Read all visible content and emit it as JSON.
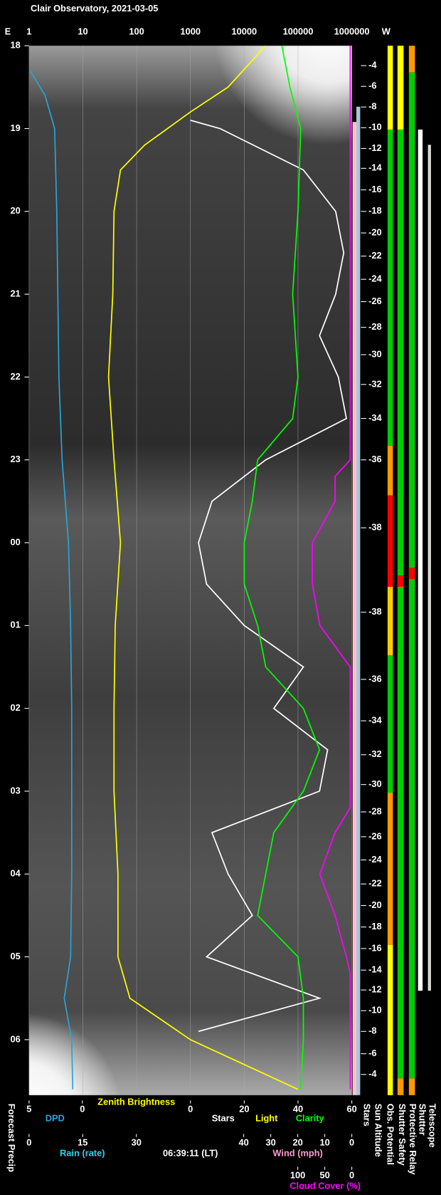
{
  "chart_data": {
    "type": "line",
    "title": "Clair Observatory, 2021-03-05",
    "time_label": "06:39:11 (LT)",
    "light_label": "Light",
    "ylim": [
      18,
      30.67
    ],
    "yticks": [
      18,
      19,
      20,
      21,
      22,
      23,
      {
        "value": 24,
        "label": "00"
      },
      {
        "value": 25,
        "label": "01"
      },
      {
        "value": 26,
        "label": "02"
      },
      {
        "value": 27,
        "label": "03"
      },
      {
        "value": 28,
        "label": "04"
      },
      {
        "value": 29,
        "label": "05"
      },
      {
        "value": 30,
        "label": "06"
      }
    ],
    "axes": {
      "brightness": {
        "log": true,
        "left": "E",
        "right": "W",
        "xlim": [
          1,
          1000000
        ],
        "xticks": [
          1,
          10,
          100,
          1000,
          10000,
          100000,
          1000000
        ]
      },
      "dpd": {
        "xlim": [
          5,
          0
        ],
        "xticks": [
          5,
          0
        ]
      },
      "rain": {
        "label": "Rain (rate)",
        "xlim": [
          0,
          30
        ],
        "xticks": [
          0,
          15,
          30
        ]
      },
      "stars": {
        "xlim": [
          0,
          60
        ],
        "xticks": [
          0,
          20,
          40,
          60
        ]
      },
      "wind": {
        "label": "Wind (mph)",
        "xlim": [
          40,
          0
        ],
        "xticks": [
          40,
          30,
          20,
          10,
          0
        ]
      },
      "cloud": {
        "xlim": [
          100,
          0
        ],
        "xticks": [
          100,
          50,
          0
        ]
      }
    },
    "series": [
      {
        "name": "DPD",
        "axis": "dpd",
        "color": "#29a3d9",
        "x": [
          18.3,
          18.6,
          19,
          20,
          21,
          22,
          23,
          24,
          25,
          26,
          27,
          28,
          29,
          29.5,
          30,
          30.6
        ],
        "values": [
          4.9,
          3.5,
          2.6,
          2.4,
          2.3,
          2.2,
          1.9,
          1.3,
          1.1,
          1.0,
          1.0,
          1.0,
          1.1,
          1.7,
          1.0,
          0.9
        ]
      },
      {
        "name": "Zenith Brightness",
        "axis": "brightness",
        "color": "#ffff00",
        "x": [
          18,
          18.5,
          18.8,
          19.2,
          19.5,
          20,
          21,
          22,
          23,
          24,
          25,
          26,
          27,
          28,
          29,
          29.5,
          30,
          30.3,
          30.6
        ],
        "values": [
          25000,
          5000,
          1000,
          140,
          50,
          38,
          36,
          30,
          38,
          50,
          40,
          38,
          38,
          45,
          45,
          75,
          1000,
          10000,
          100000
        ]
      },
      {
        "name": "Stars",
        "axis": "stars",
        "color": "#ffffff",
        "x": [
          18.9,
          19,
          19.5,
          20,
          20.5,
          21,
          21.5,
          22,
          22.5,
          23,
          23.5,
          24,
          24.5,
          25,
          25.5,
          26,
          26.5,
          27,
          27.5,
          28,
          28.5,
          29,
          29.5,
          29.9
        ],
        "values": [
          0,
          11,
          42,
          54,
          57,
          54,
          48,
          55,
          58,
          28,
          8,
          3,
          6,
          20,
          42,
          31,
          51,
          48,
          8,
          14,
          23,
          6,
          48,
          3
        ]
      },
      {
        "name": "Clarity",
        "axis": "stars",
        "color": "#00ff00",
        "x": [
          18,
          18.5,
          19,
          20,
          21,
          22,
          22.5,
          23,
          23.5,
          24,
          24.5,
          25,
          25.5,
          26,
          26.5,
          27,
          27.5,
          28,
          28.5,
          29,
          29.5,
          30,
          30.6
        ],
        "values": [
          34,
          37,
          41,
          40,
          38,
          40,
          38,
          25,
          23,
          20,
          20,
          25,
          28,
          42,
          48,
          42,
          31,
          28,
          25,
          40,
          42,
          42,
          41
        ]
      },
      {
        "name": "Cloud Cover (%)",
        "axis": "cloud",
        "color": "#ff00ff",
        "x": [
          18,
          23,
          23.2,
          23.5,
          24,
          24.5,
          25,
          25.5,
          26.5,
          27.2,
          27.5,
          28,
          28.5,
          29,
          29.2,
          30.6
        ],
        "values": [
          3,
          3,
          31,
          31,
          73,
          73,
          59,
          3,
          3,
          3,
          31,
          59,
          31,
          10,
          3,
          3
        ]
      }
    ],
    "sun_altitude": {
      "label": "Sun Altitude",
      "x": [
        18.24,
        18.49,
        18.74,
        18.99,
        19.24,
        19.48,
        19.74,
        20.0,
        20.26,
        20.54,
        20.82,
        21.09,
        21.4,
        21.73,
        22.09,
        22.5,
        23.0,
        23.82,
        24.84,
        25.65,
        26.15,
        26.56,
        26.92,
        27.25,
        27.55,
        27.83,
        28.12,
        28.38,
        28.64,
        28.9,
        29.16,
        29.4,
        29.65,
        29.9,
        30.17,
        30.42
      ],
      "values": [
        -4,
        -6,
        -8,
        -10,
        -12,
        -14,
        -16,
        -18,
        -20,
        -22,
        -24,
        -26,
        -28,
        -30,
        -32,
        -34,
        -36,
        -38,
        -38,
        -36,
        -34,
        -32,
        -30,
        -28,
        -26,
        -24,
        -22,
        -20,
        -18,
        -16,
        -14,
        -12,
        -10,
        -8,
        -6,
        -4
      ]
    },
    "vertical_labels": [
      "Forecast Precip",
      "Stars",
      "Obs. Potential",
      "Shutter Safety",
      "Protective Relay",
      "Shutter",
      "Telescope"
    ]
  }
}
